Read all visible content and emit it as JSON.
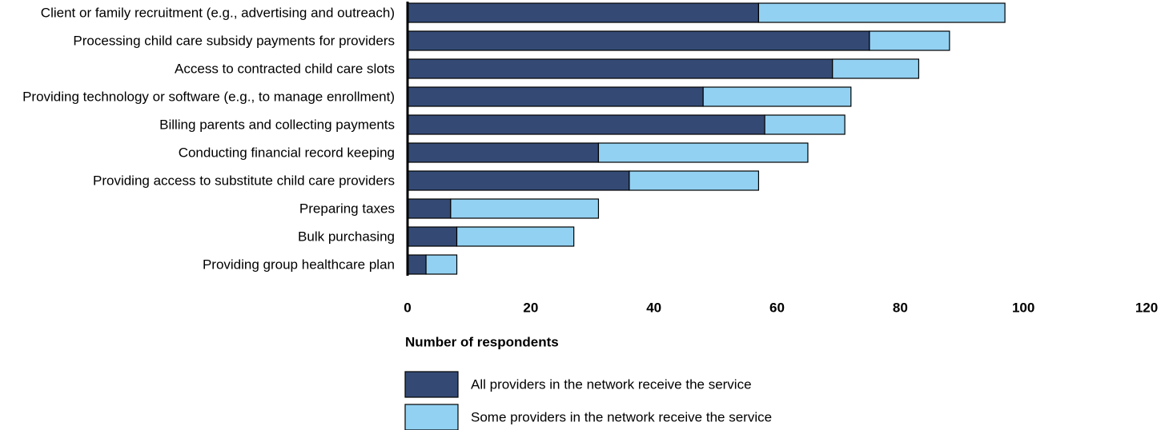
{
  "chart_data": {
    "type": "bar",
    "orientation": "horizontal",
    "stacked": true,
    "categories": [
      "Client or family recruitment (e.g., advertising and outreach)",
      "Processing child care subsidy payments for providers",
      "Access to contracted child care slots",
      "Providing technology or software (e.g., to manage enrollment)",
      "Billing parents and collecting payments",
      "Conducting financial record keeping",
      "Providing access to substitute child care providers",
      "Preparing taxes",
      "Bulk purchasing",
      "Providing group healthcare plan"
    ],
    "series": [
      {
        "name": "All providers in the network receive the service",
        "color": "#344a75",
        "values": [
          57,
          75,
          69,
          48,
          58,
          31,
          36,
          7,
          8,
          3
        ]
      },
      {
        "name": "Some providers in the network receive the service",
        "color": "#92d1f2",
        "values": [
          40,
          13,
          14,
          24,
          13,
          34,
          21,
          24,
          19,
          5
        ]
      }
    ],
    "xlabel": "Number of respondents",
    "xlim": [
      0,
      120
    ],
    "xticks": [
      "0",
      "20",
      "40",
      "60",
      "80",
      "100",
      "120"
    ],
    "grid": false,
    "legend_position": "bottom-left"
  }
}
